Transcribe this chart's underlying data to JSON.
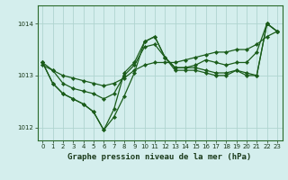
{
  "xlabel": "Graphe pression niveau de la mer (hPa)",
  "background_color": "#d4eeed",
  "grid_color": "#b0d4d0",
  "line_color": "#1a5c1a",
  "marker_color": "#1a5c1a",
  "xlim": [
    -0.5,
    23.5
  ],
  "ylim": [
    1011.75,
    1014.35
  ],
  "yticks": [
    1012,
    1013,
    1014
  ],
  "xticks": [
    0,
    1,
    2,
    3,
    4,
    5,
    6,
    7,
    8,
    9,
    10,
    11,
    12,
    13,
    14,
    15,
    16,
    17,
    18,
    19,
    20,
    21,
    22,
    23
  ],
  "series": [
    [
      1013.25,
      1013.1,
      1012.85,
      1012.75,
      1012.7,
      1012.65,
      1012.55,
      1012.65,
      1013.0,
      1013.2,
      1013.55,
      1013.6,
      1013.35,
      1013.15,
      1013.15,
      1013.2,
      1013.3,
      1013.25,
      1013.2,
      1013.25,
      1013.25,
      1013.45,
      1014.0,
      1013.85
    ],
    [
      1013.25,
      1012.85,
      1012.65,
      1012.55,
      1012.45,
      1012.3,
      1011.95,
      1012.2,
      1012.6,
      1013.05,
      1013.65,
      1013.75,
      1013.35,
      1013.1,
      1013.1,
      1013.1,
      1013.05,
      1013.0,
      1013.0,
      1013.1,
      1013.0,
      1013.0,
      1014.0,
      1013.85
    ],
    [
      1013.25,
      1012.85,
      1012.65,
      1012.55,
      1012.45,
      1012.3,
      1011.95,
      1012.35,
      1013.05,
      1013.25,
      1013.65,
      1013.75,
      1013.35,
      1013.15,
      1013.15,
      1013.15,
      1013.1,
      1013.05,
      1013.05,
      1013.1,
      1013.05,
      1013.0,
      1014.0,
      1013.85
    ],
    [
      1013.2,
      1013.1,
      1013.0,
      1012.95,
      1012.9,
      1012.85,
      1012.8,
      1012.85,
      1012.95,
      1013.1,
      1013.2,
      1013.25,
      1013.25,
      1013.25,
      1013.3,
      1013.35,
      1013.4,
      1013.45,
      1013.45,
      1013.5,
      1013.5,
      1013.6,
      1013.75,
      1013.85
    ]
  ]
}
